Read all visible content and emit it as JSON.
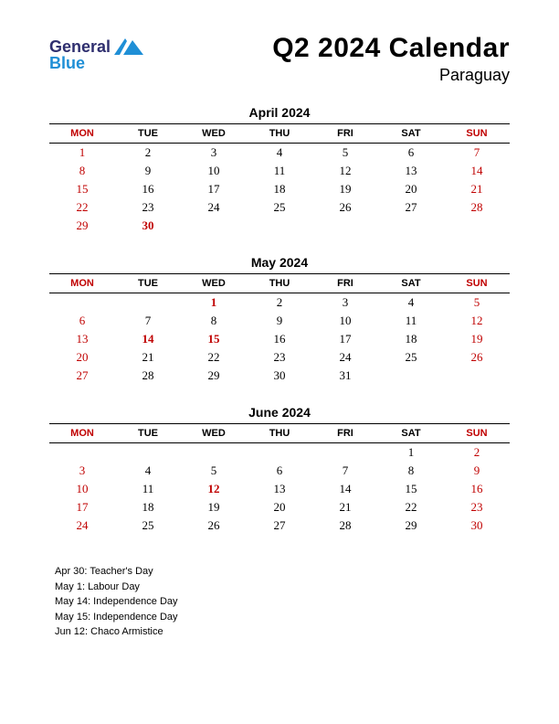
{
  "logo": {
    "word1": "General",
    "word2": "Blue",
    "mark_fill": "#1f8fd6"
  },
  "title": "Q2 2024 Calendar",
  "subtitle": "Paraguay",
  "colors": {
    "holiday_red": "#c00000",
    "text": "#000000",
    "rule": "#000000"
  },
  "day_headers": [
    "MON",
    "TUE",
    "WED",
    "THU",
    "FRI",
    "SAT",
    "SUN"
  ],
  "header_red_cols": [
    0,
    6
  ],
  "months": [
    {
      "title": "April 2024",
      "weeks": [
        [
          {
            "n": 1,
            "r": 1
          },
          {
            "n": 2
          },
          {
            "n": 3
          },
          {
            "n": 4
          },
          {
            "n": 5
          },
          {
            "n": 6
          },
          {
            "n": 7,
            "r": 1
          }
        ],
        [
          {
            "n": 8,
            "r": 1
          },
          {
            "n": 9
          },
          {
            "n": 10
          },
          {
            "n": 11
          },
          {
            "n": 12
          },
          {
            "n": 13
          },
          {
            "n": 14,
            "r": 1
          }
        ],
        [
          {
            "n": 15,
            "r": 1
          },
          {
            "n": 16
          },
          {
            "n": 17
          },
          {
            "n": 18
          },
          {
            "n": 19
          },
          {
            "n": 20
          },
          {
            "n": 21,
            "r": 1
          }
        ],
        [
          {
            "n": 22,
            "r": 1
          },
          {
            "n": 23
          },
          {
            "n": 24
          },
          {
            "n": 25
          },
          {
            "n": 26
          },
          {
            "n": 27
          },
          {
            "n": 28,
            "r": 1
          }
        ],
        [
          {
            "n": 29,
            "r": 1
          },
          {
            "n": 30,
            "r": 1,
            "b": 1
          },
          {
            "n": ""
          },
          {
            "n": ""
          },
          {
            "n": ""
          },
          {
            "n": ""
          },
          {
            "n": ""
          }
        ]
      ]
    },
    {
      "title": "May 2024",
      "weeks": [
        [
          {
            "n": ""
          },
          {
            "n": ""
          },
          {
            "n": 1,
            "r": 1,
            "b": 1
          },
          {
            "n": 2
          },
          {
            "n": 3
          },
          {
            "n": 4
          },
          {
            "n": 5,
            "r": 1
          }
        ],
        [
          {
            "n": 6,
            "r": 1
          },
          {
            "n": 7
          },
          {
            "n": 8
          },
          {
            "n": 9
          },
          {
            "n": 10
          },
          {
            "n": 11
          },
          {
            "n": 12,
            "r": 1
          }
        ],
        [
          {
            "n": 13,
            "r": 1
          },
          {
            "n": 14,
            "r": 1,
            "b": 1
          },
          {
            "n": 15,
            "r": 1,
            "b": 1
          },
          {
            "n": 16
          },
          {
            "n": 17
          },
          {
            "n": 18
          },
          {
            "n": 19,
            "r": 1
          }
        ],
        [
          {
            "n": 20,
            "r": 1
          },
          {
            "n": 21
          },
          {
            "n": 22
          },
          {
            "n": 23
          },
          {
            "n": 24
          },
          {
            "n": 25
          },
          {
            "n": 26,
            "r": 1
          }
        ],
        [
          {
            "n": 27,
            "r": 1
          },
          {
            "n": 28
          },
          {
            "n": 29
          },
          {
            "n": 30
          },
          {
            "n": 31
          },
          {
            "n": ""
          },
          {
            "n": ""
          }
        ]
      ]
    },
    {
      "title": "June 2024",
      "weeks": [
        [
          {
            "n": ""
          },
          {
            "n": ""
          },
          {
            "n": ""
          },
          {
            "n": ""
          },
          {
            "n": ""
          },
          {
            "n": 1
          },
          {
            "n": 2,
            "r": 1
          }
        ],
        [
          {
            "n": 3,
            "r": 1
          },
          {
            "n": 4
          },
          {
            "n": 5
          },
          {
            "n": 6
          },
          {
            "n": 7
          },
          {
            "n": 8
          },
          {
            "n": 9,
            "r": 1
          }
        ],
        [
          {
            "n": 10,
            "r": 1
          },
          {
            "n": 11
          },
          {
            "n": 12,
            "r": 1,
            "b": 1
          },
          {
            "n": 13
          },
          {
            "n": 14
          },
          {
            "n": 15
          },
          {
            "n": 16,
            "r": 1
          }
        ],
        [
          {
            "n": 17,
            "r": 1
          },
          {
            "n": 18
          },
          {
            "n": 19
          },
          {
            "n": 20
          },
          {
            "n": 21
          },
          {
            "n": 22
          },
          {
            "n": 23,
            "r": 1
          }
        ],
        [
          {
            "n": 24,
            "r": 1
          },
          {
            "n": 25
          },
          {
            "n": 26
          },
          {
            "n": 27
          },
          {
            "n": 28
          },
          {
            "n": 29
          },
          {
            "n": 30,
            "r": 1
          }
        ]
      ]
    }
  ],
  "holidays": [
    "Apr 30: Teacher's Day",
    "May 1: Labour Day",
    "May 14: Independence Day",
    "May 15: Independence Day",
    "Jun 12: Chaco Armistice"
  ]
}
